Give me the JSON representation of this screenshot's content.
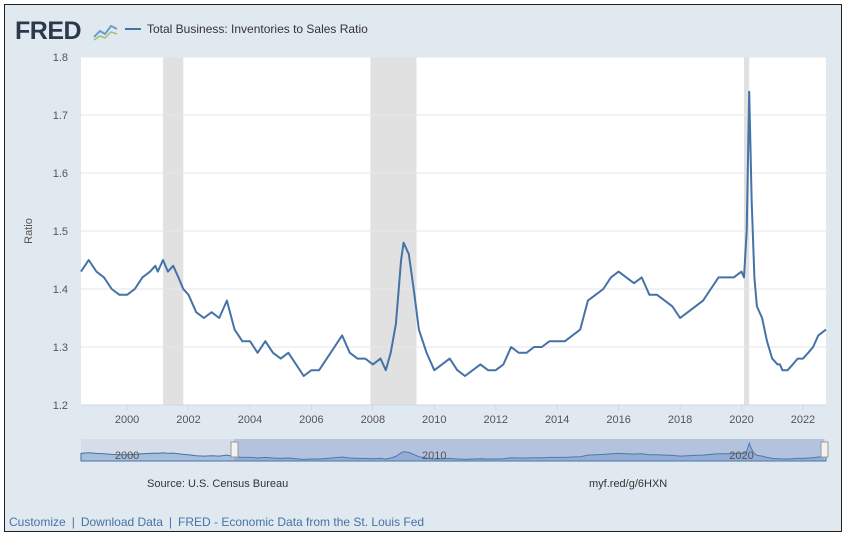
{
  "header": {
    "logo_text": "FRED",
    "logo_icon": "chart-line-icon",
    "legend_label": "Total Business: Inventories to Sales Ratio"
  },
  "colors": {
    "series": "#4572a7",
    "recession": "#e1e1e1",
    "background": "#e1e9f0"
  },
  "chart_data": {
    "type": "line",
    "title": "Total Business: Inventories to Sales Ratio",
    "xlabel": "",
    "ylabel": "Ratio",
    "xlim": [
      1998.5,
      2022.75
    ],
    "ylim": [
      1.2,
      1.8
    ],
    "yticks": [
      "1.2",
      "1.3",
      "1.4",
      "1.5",
      "1.6",
      "1.7",
      "1.8"
    ],
    "xticks": [
      "2000",
      "2002",
      "2004",
      "2006",
      "2008",
      "2010",
      "2012",
      "2014",
      "2016",
      "2018",
      "2020",
      "2022"
    ],
    "recessions": [
      [
        2001.17,
        2001.83
      ],
      [
        2007.92,
        2009.42
      ],
      [
        2020.08,
        2020.25
      ]
    ],
    "series": [
      {
        "name": "Total Business: Inventories to Sales Ratio",
        "x": [
          1998.5,
          1998.75,
          1999.0,
          1999.25,
          1999.5,
          1999.75,
          2000.0,
          2000.25,
          2000.5,
          2000.75,
          2000.92,
          2001.0,
          2001.17,
          2001.33,
          2001.5,
          2001.67,
          2001.83,
          2002.0,
          2002.25,
          2002.5,
          2002.75,
          2003.0,
          2003.25,
          2003.5,
          2003.75,
          2004.0,
          2004.25,
          2004.5,
          2004.75,
          2005.0,
          2005.25,
          2005.5,
          2005.75,
          2006.0,
          2006.25,
          2006.5,
          2006.75,
          2007.0,
          2007.25,
          2007.5,
          2007.75,
          2008.0,
          2008.25,
          2008.42,
          2008.58,
          2008.75,
          2008.92,
          2009.0,
          2009.17,
          2009.33,
          2009.5,
          2009.75,
          2010.0,
          2010.25,
          2010.5,
          2010.75,
          2011.0,
          2011.25,
          2011.5,
          2011.75,
          2012.0,
          2012.25,
          2012.5,
          2012.75,
          2013.0,
          2013.25,
          2013.5,
          2013.75,
          2014.0,
          2014.25,
          2014.5,
          2014.75,
          2015.0,
          2015.25,
          2015.5,
          2015.75,
          2016.0,
          2016.25,
          2016.5,
          2016.75,
          2017.0,
          2017.25,
          2017.5,
          2017.75,
          2018.0,
          2018.25,
          2018.5,
          2018.75,
          2019.0,
          2019.25,
          2019.5,
          2019.75,
          2020.0,
          2020.08,
          2020.17,
          2020.25,
          2020.33,
          2020.42,
          2020.5,
          2020.67,
          2020.83,
          2021.0,
          2021.17,
          2021.25,
          2021.33,
          2021.5,
          2021.67,
          2021.83,
          2022.0,
          2022.17,
          2022.33,
          2022.5,
          2022.75
        ],
        "values": [
          1.43,
          1.45,
          1.43,
          1.42,
          1.4,
          1.39,
          1.39,
          1.4,
          1.42,
          1.43,
          1.44,
          1.43,
          1.45,
          1.43,
          1.44,
          1.42,
          1.4,
          1.39,
          1.36,
          1.35,
          1.36,
          1.35,
          1.38,
          1.33,
          1.31,
          1.31,
          1.29,
          1.31,
          1.29,
          1.28,
          1.29,
          1.27,
          1.25,
          1.26,
          1.26,
          1.28,
          1.3,
          1.32,
          1.29,
          1.28,
          1.28,
          1.27,
          1.28,
          1.26,
          1.29,
          1.34,
          1.45,
          1.48,
          1.46,
          1.4,
          1.33,
          1.29,
          1.26,
          1.27,
          1.28,
          1.26,
          1.25,
          1.26,
          1.27,
          1.26,
          1.26,
          1.27,
          1.3,
          1.29,
          1.29,
          1.3,
          1.3,
          1.31,
          1.31,
          1.31,
          1.32,
          1.33,
          1.38,
          1.39,
          1.4,
          1.42,
          1.43,
          1.42,
          1.41,
          1.42,
          1.39,
          1.39,
          1.38,
          1.37,
          1.35,
          1.36,
          1.37,
          1.38,
          1.4,
          1.42,
          1.42,
          1.42,
          1.43,
          1.42,
          1.5,
          1.74,
          1.55,
          1.42,
          1.37,
          1.35,
          1.31,
          1.28,
          1.27,
          1.27,
          1.26,
          1.26,
          1.27,
          1.28,
          1.28,
          1.29,
          1.3,
          1.32,
          1.33
        ]
      }
    ],
    "overview": {
      "labels": [
        "2000",
        "2010",
        "2020"
      ]
    }
  },
  "footer": {
    "source": "Source: U.S. Census Bureau",
    "short_url": "myf.red/g/6HXN"
  },
  "links": {
    "customize": "Customize",
    "download": "Download Data",
    "fred_link": "FRED - Economic Data from the St. Louis Fed",
    "separator": "|"
  }
}
